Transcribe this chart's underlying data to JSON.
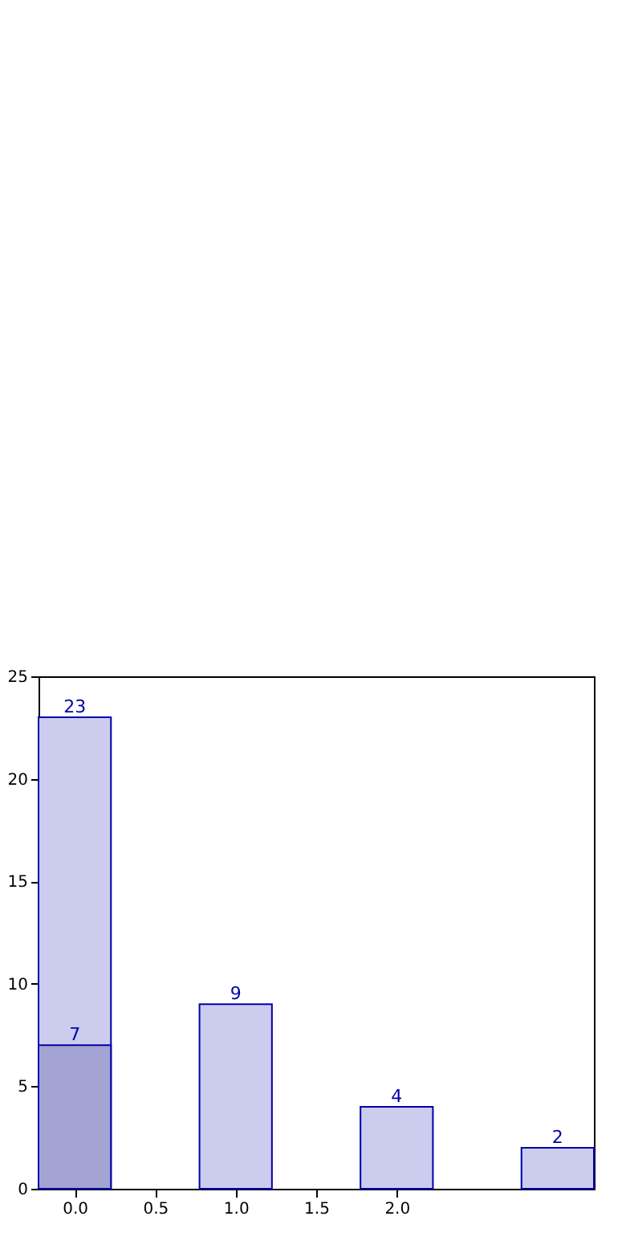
{
  "chart_data": {
    "type": "bar",
    "x": [
      0,
      1,
      2,
      3
    ],
    "series": [
      {
        "color": "#ccccee",
        "values": [
          23,
          9,
          4,
          2
        ]
      },
      {
        "color": "#a3a3d4",
        "values": [
          7,
          null,
          null,
          null
        ]
      }
    ],
    "xlim": [
      -0.225,
      3.225
    ],
    "xticks": [
      {
        "value": 0,
        "label": "0.0"
      },
      {
        "value": 0.5,
        "label": "0.5"
      },
      {
        "value": 1,
        "label": "1.0"
      },
      {
        "value": 1.5,
        "label": "1.5"
      },
      {
        "value": 2,
        "label": "2.0"
      }
    ],
    "ylim": [
      0,
      25
    ],
    "yticks": [
      0,
      5,
      10,
      15,
      20,
      25
    ],
    "data_labels": true,
    "grid": false
  }
}
